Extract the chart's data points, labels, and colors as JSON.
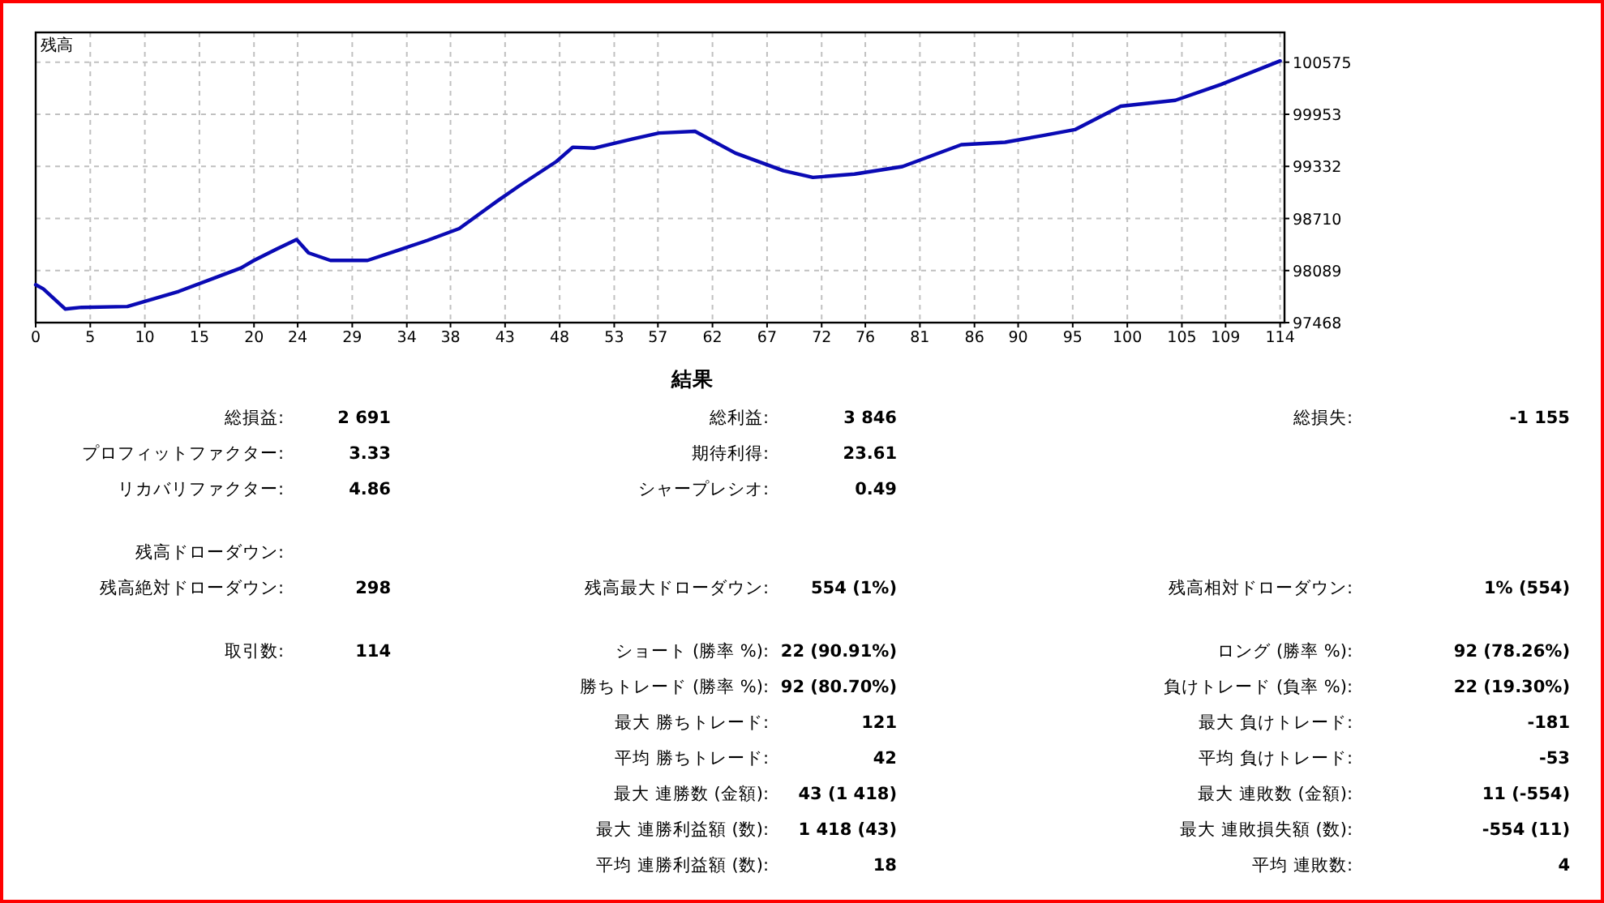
{
  "chart_data": [
    {
      "type": "line",
      "title": "残高",
      "grid": true,
      "line_style": "solid",
      "xlim": [
        0,
        114.4
      ],
      "ylim": [
        97468,
        100930
      ],
      "xticks": [
        0,
        5,
        10,
        15,
        20,
        24,
        29,
        34,
        38,
        43,
        48,
        53,
        57,
        62,
        67,
        72,
        76,
        81,
        86,
        90,
        95,
        100,
        105,
        109,
        114
      ],
      "yticks": [
        97468,
        98089,
        98710,
        99332,
        99953,
        100575
      ],
      "series": [
        {
          "color": "#0a0ab4",
          "x": [
            0,
            0.7,
            2.7,
            4.2,
            8.4,
            13.1,
            18.8,
            20,
            22,
            23.9,
            25,
            27,
            30.4,
            33.4,
            35.9,
            38.8,
            42.3,
            44.3,
            47.7,
            49.2,
            51.2,
            54.7,
            57.1,
            60.4,
            64.1,
            68.5,
            71.2,
            75,
            79.4,
            84.8,
            88.8,
            92.3,
            95.2,
            99.4,
            104.4,
            108.6,
            114
          ],
          "values": [
            97920,
            97870,
            97630,
            97650,
            97660,
            97840,
            98120,
            98210,
            98340,
            98460,
            98300,
            98210,
            98210,
            98340,
            98450,
            98590,
            98920,
            99100,
            99390,
            99560,
            99550,
            99660,
            99730,
            99750,
            99490,
            99280,
            99200,
            99240,
            99330,
            99590,
            99620,
            99700,
            99770,
            100050,
            100120,
            100310,
            100590
          ]
        }
      ]
    },
    {
      "type": "other",
      "title": "結果",
      "annotations": [
        "総損益:",
        "2 691",
        "総利益:",
        "3 846",
        "総損失:",
        "-1 155",
        "プロフィットファクター:",
        "3.33",
        "期待利得:",
        "23.61",
        "リカバリファクター:",
        "4.86",
        "シャープレシオ:",
        "0.49",
        "残高ドローダウン:",
        "残高絶対ドローダウン:",
        "298",
        "残高最大ドローダウン:",
        "554 (1%)",
        "残高相対ドローダウン:",
        "1% (554)",
        "取引数:",
        "114",
        "ショート (勝率 %):",
        "22 (90.91%)",
        "ロング (勝率 %):",
        "92 (78.26%)",
        "勝ちトレード (勝率 %):",
        "92 (80.70%)",
        "負けトレード (負率 %):",
        "22 (19.30%)",
        "最大 勝ちトレード:",
        "121",
        "最大 負けトレード:",
        "-181",
        "平均 勝ちトレード:",
        "42",
        "平均 負けトレード:",
        "-53",
        "最大 連勝数 (金額):",
        "43 (1 418)",
        "最大 連敗数 (金額):",
        "11 (-554)",
        "最大 連勝利益額 (数):",
        "1 418 (43)",
        "最大 連敗損失額 (数):",
        "-554 (11)",
        "平均 連勝利益額 (数):",
        "18",
        "平均 連敗数:",
        "4"
      ]
    }
  ]
}
